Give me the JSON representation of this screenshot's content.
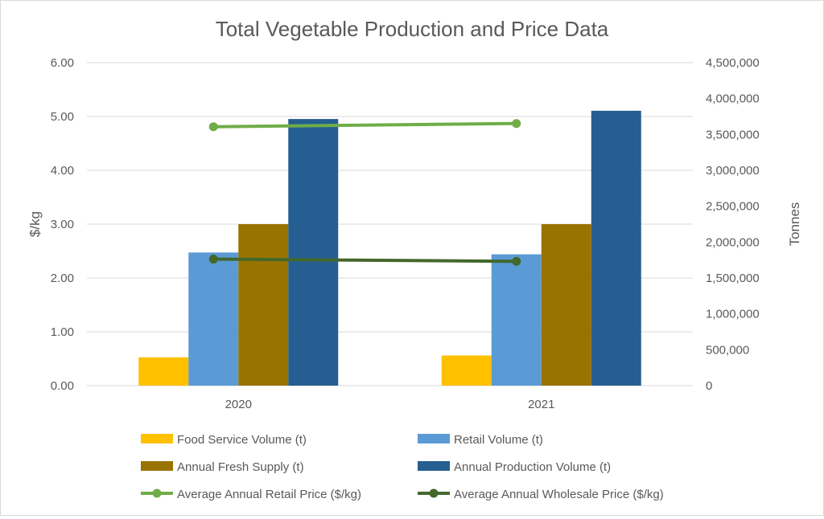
{
  "chart_data": {
    "type": "bar",
    "title": "Total Vegetable Production and Price Data",
    "categories": [
      "2020",
      "2021"
    ],
    "y_left": {
      "label": "$/kg",
      "min": 0,
      "max": 6,
      "step": 1,
      "ticks": [
        "0.00",
        "1.00",
        "2.00",
        "3.00",
        "4.00",
        "5.00",
        "6.00"
      ]
    },
    "y_right": {
      "label": "Tonnes",
      "min": 0,
      "max": 4500000,
      "step": 500000,
      "ticks": [
        "0",
        "500,000",
        "1,000,000",
        "1,500,000",
        "2,000,000",
        "2,500,000",
        "3,000,000",
        "3,500,000",
        "4,000,000",
        "4,500,000"
      ]
    },
    "bar_series": [
      {
        "name": "Food Service Volume (t)",
        "color": "#FFC000",
        "axis": "right",
        "values": [
          395000,
          420000
        ]
      },
      {
        "name": "Retail Volume (t)",
        "color": "#5B9BD5",
        "axis": "right",
        "values": [
          1855000,
          1830000
        ]
      },
      {
        "name": "Annual Fresh Supply (t)",
        "color": "#997300",
        "axis": "right",
        "values": [
          2250000,
          2250000
        ]
      },
      {
        "name": "Annual Production Volume (t)",
        "color": "#255E91",
        "axis": "right",
        "values": [
          3715000,
          3830000
        ]
      }
    ],
    "line_series": [
      {
        "name": "Average Annual Retail Price ($/kg)",
        "color": "#70AD47",
        "axis": "left",
        "values": [
          4.81,
          4.87
        ]
      },
      {
        "name": "Average Annual Wholesale Price ($/kg)",
        "color": "#43682B",
        "axis": "left",
        "values": [
          2.35,
          2.31
        ]
      }
    ],
    "grid": true,
    "legend_position": "bottom"
  }
}
